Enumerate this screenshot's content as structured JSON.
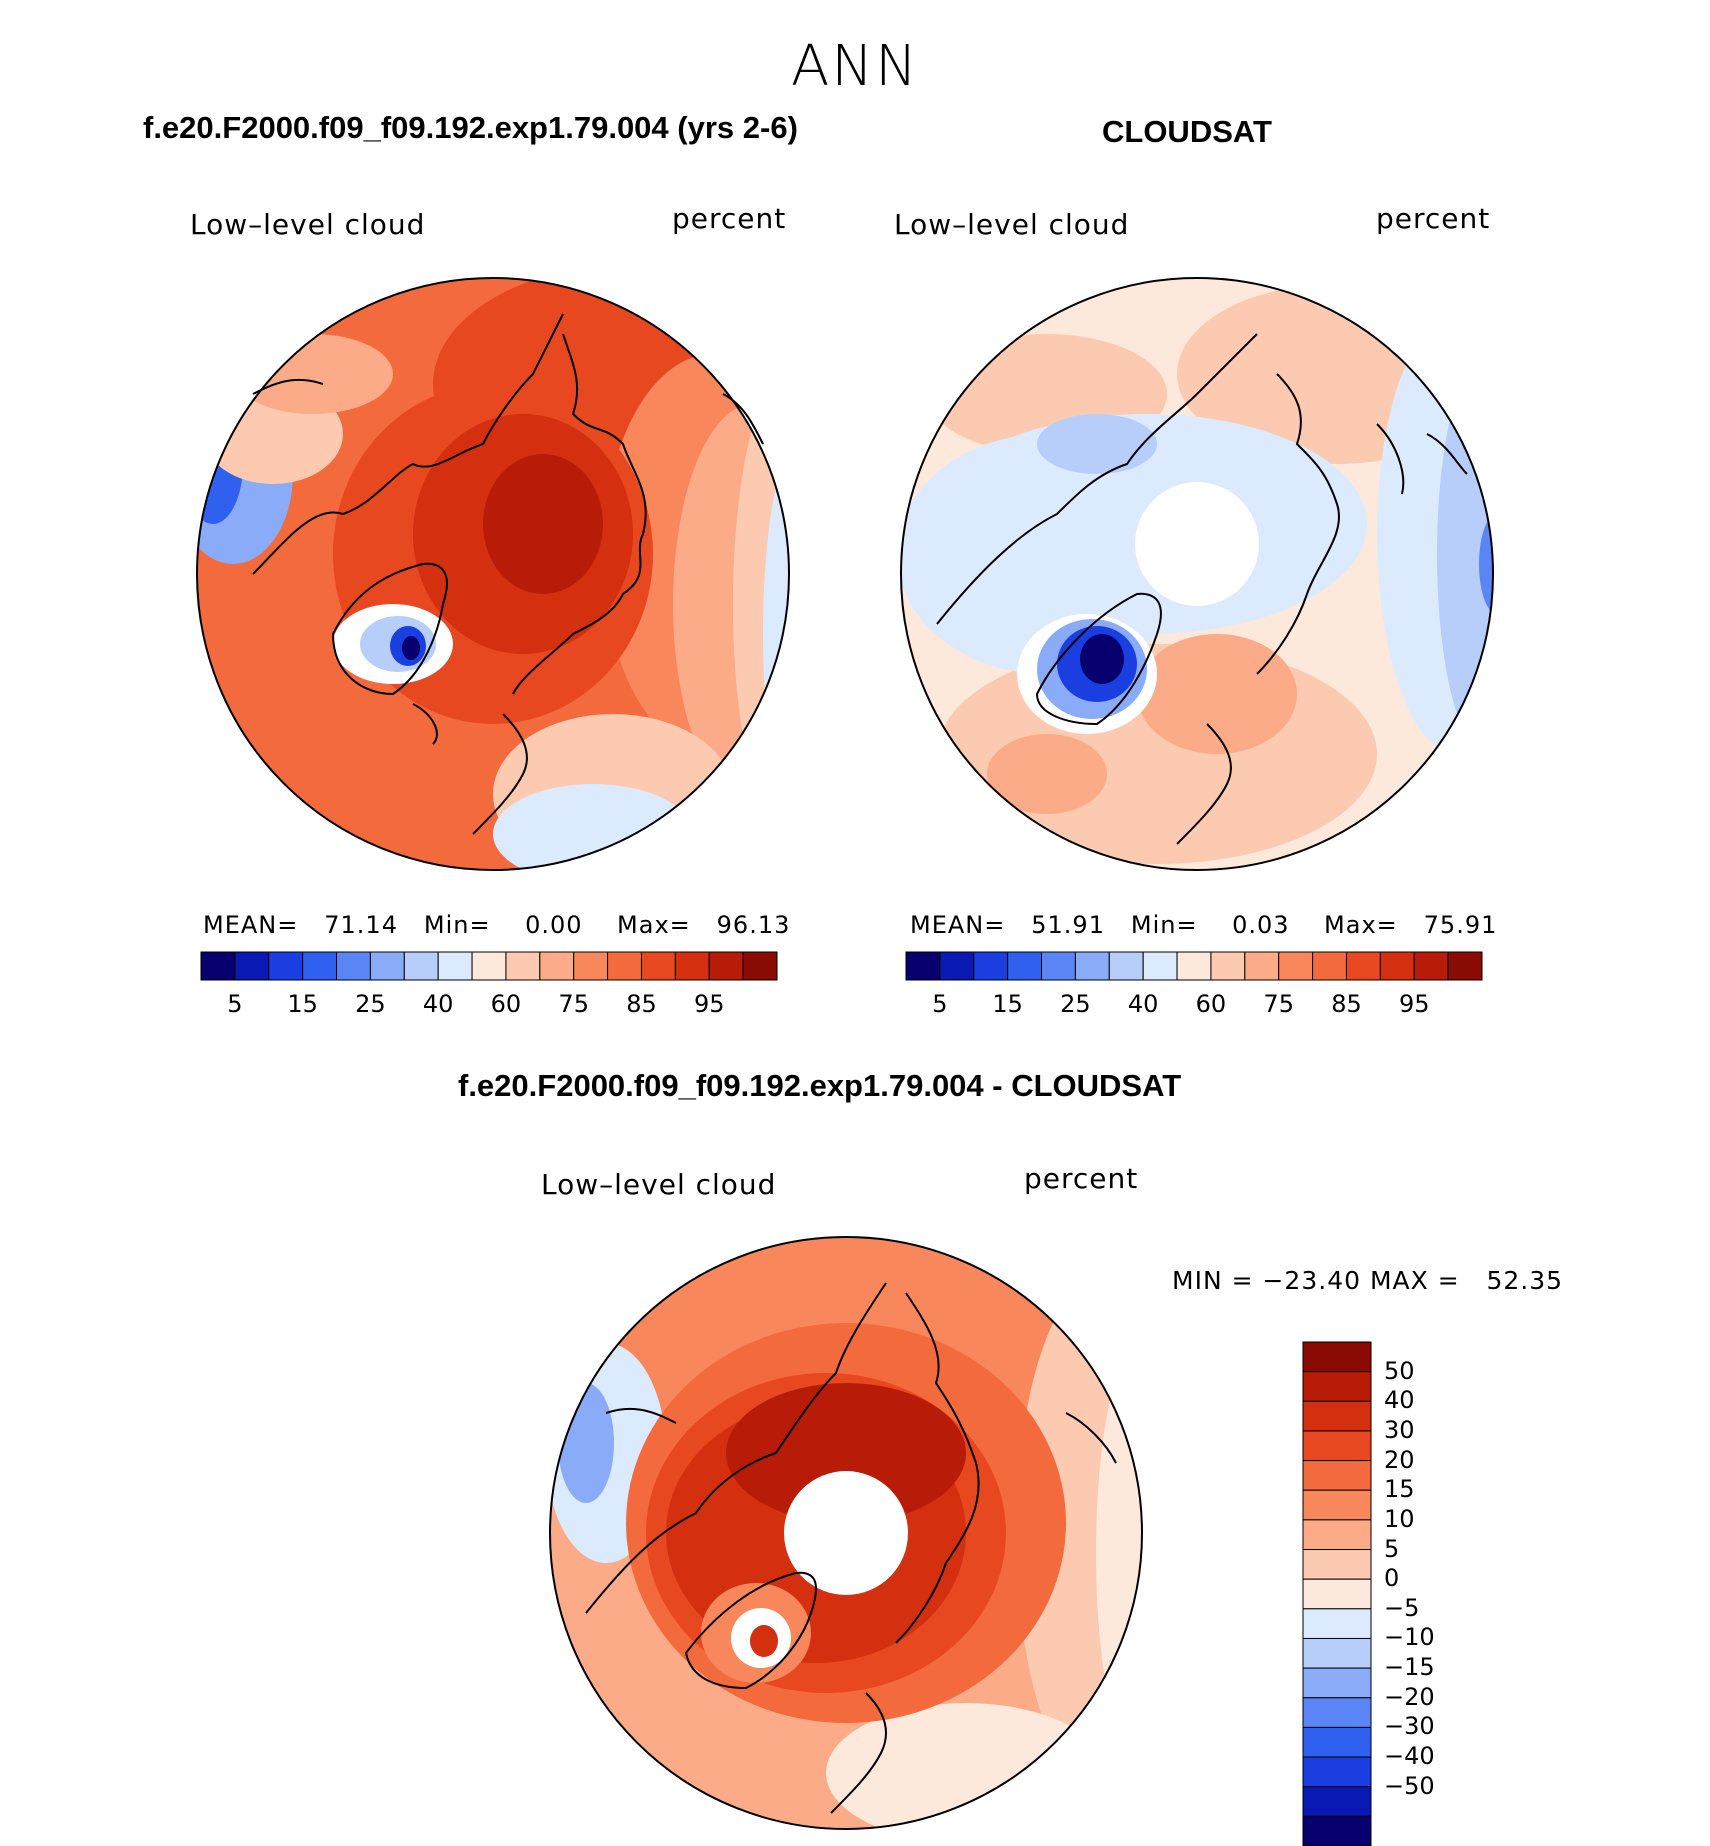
{
  "title": "ANN",
  "panel_left": {
    "title": "f.e20.F2000.f09_f09.192.exp1.79.004 (yrs 2-6)",
    "variable": "Low–level cloud",
    "units": "percent",
    "mean_label": "MEAN=",
    "mean": "71.14",
    "min_label": "Min=",
    "min": "0.00",
    "max_label": "Max=",
    "max": "96.13"
  },
  "panel_right": {
    "title": "CLOUDSAT",
    "variable": "Low–level cloud",
    "units": "percent",
    "mean_label": "MEAN=",
    "mean": "51.91",
    "min_label": "Min=",
    "min": "0.03",
    "max_label": "Max=",
    "max": "75.91"
  },
  "panel_diff": {
    "title": "f.e20.F2000.f09_f09.192.exp1.79.004 - CLOUDSAT",
    "variable": "Low–level cloud",
    "units": "percent",
    "minmax_text": "MIN = −23.40 MAX =   52.35"
  },
  "colorbar_top": {
    "colors": [
      "#08006e",
      "#0a18b4",
      "#1a3ee0",
      "#3060f0",
      "#5a86f5",
      "#8aacf8",
      "#b8cefa",
      "#dceafd",
      "#fde8dc",
      "#fccab0",
      "#fbab88",
      "#f8875c",
      "#f36a3c",
      "#e8481f",
      "#d42f0e",
      "#b81c08",
      "#8a0a04"
    ],
    "tick_labels": [
      "5",
      "15",
      "25",
      "40",
      "60",
      "75",
      "85",
      "95"
    ]
  },
  "colorbar_diff": {
    "colors": [
      "#08006e",
      "#0a18b4",
      "#1a3ee0",
      "#3060f0",
      "#5a86f5",
      "#8aacf8",
      "#b8cefa",
      "#dceafd",
      "#fde8dc",
      "#fccab0",
      "#fbab88",
      "#f8875c",
      "#f36a3c",
      "#e8481f",
      "#d42f0e",
      "#b81c08",
      "#8a0a04"
    ],
    "tick_labels": [
      "50",
      "40",
      "30",
      "20",
      "15",
      "10",
      "5",
      "0",
      "−5",
      "−10",
      "−15",
      "−20",
      "−30",
      "−40",
      "−50"
    ]
  },
  "map_colors": {
    "deep_red": "#b81c08",
    "red": "#d42f0e",
    "orange_red": "#e8481f",
    "orange": "#f36a3c",
    "salmon": "#f8875c",
    "light_salmon": "#fbab88",
    "peach": "#fccab0",
    "cream": "#fde8dc",
    "pale_blue": "#dceafd",
    "light_blue": "#b8cefa",
    "mid_blue": "#8aacf8",
    "blue": "#3060f0",
    "dark_blue": "#0a18b4",
    "navy": "#08006e"
  }
}
